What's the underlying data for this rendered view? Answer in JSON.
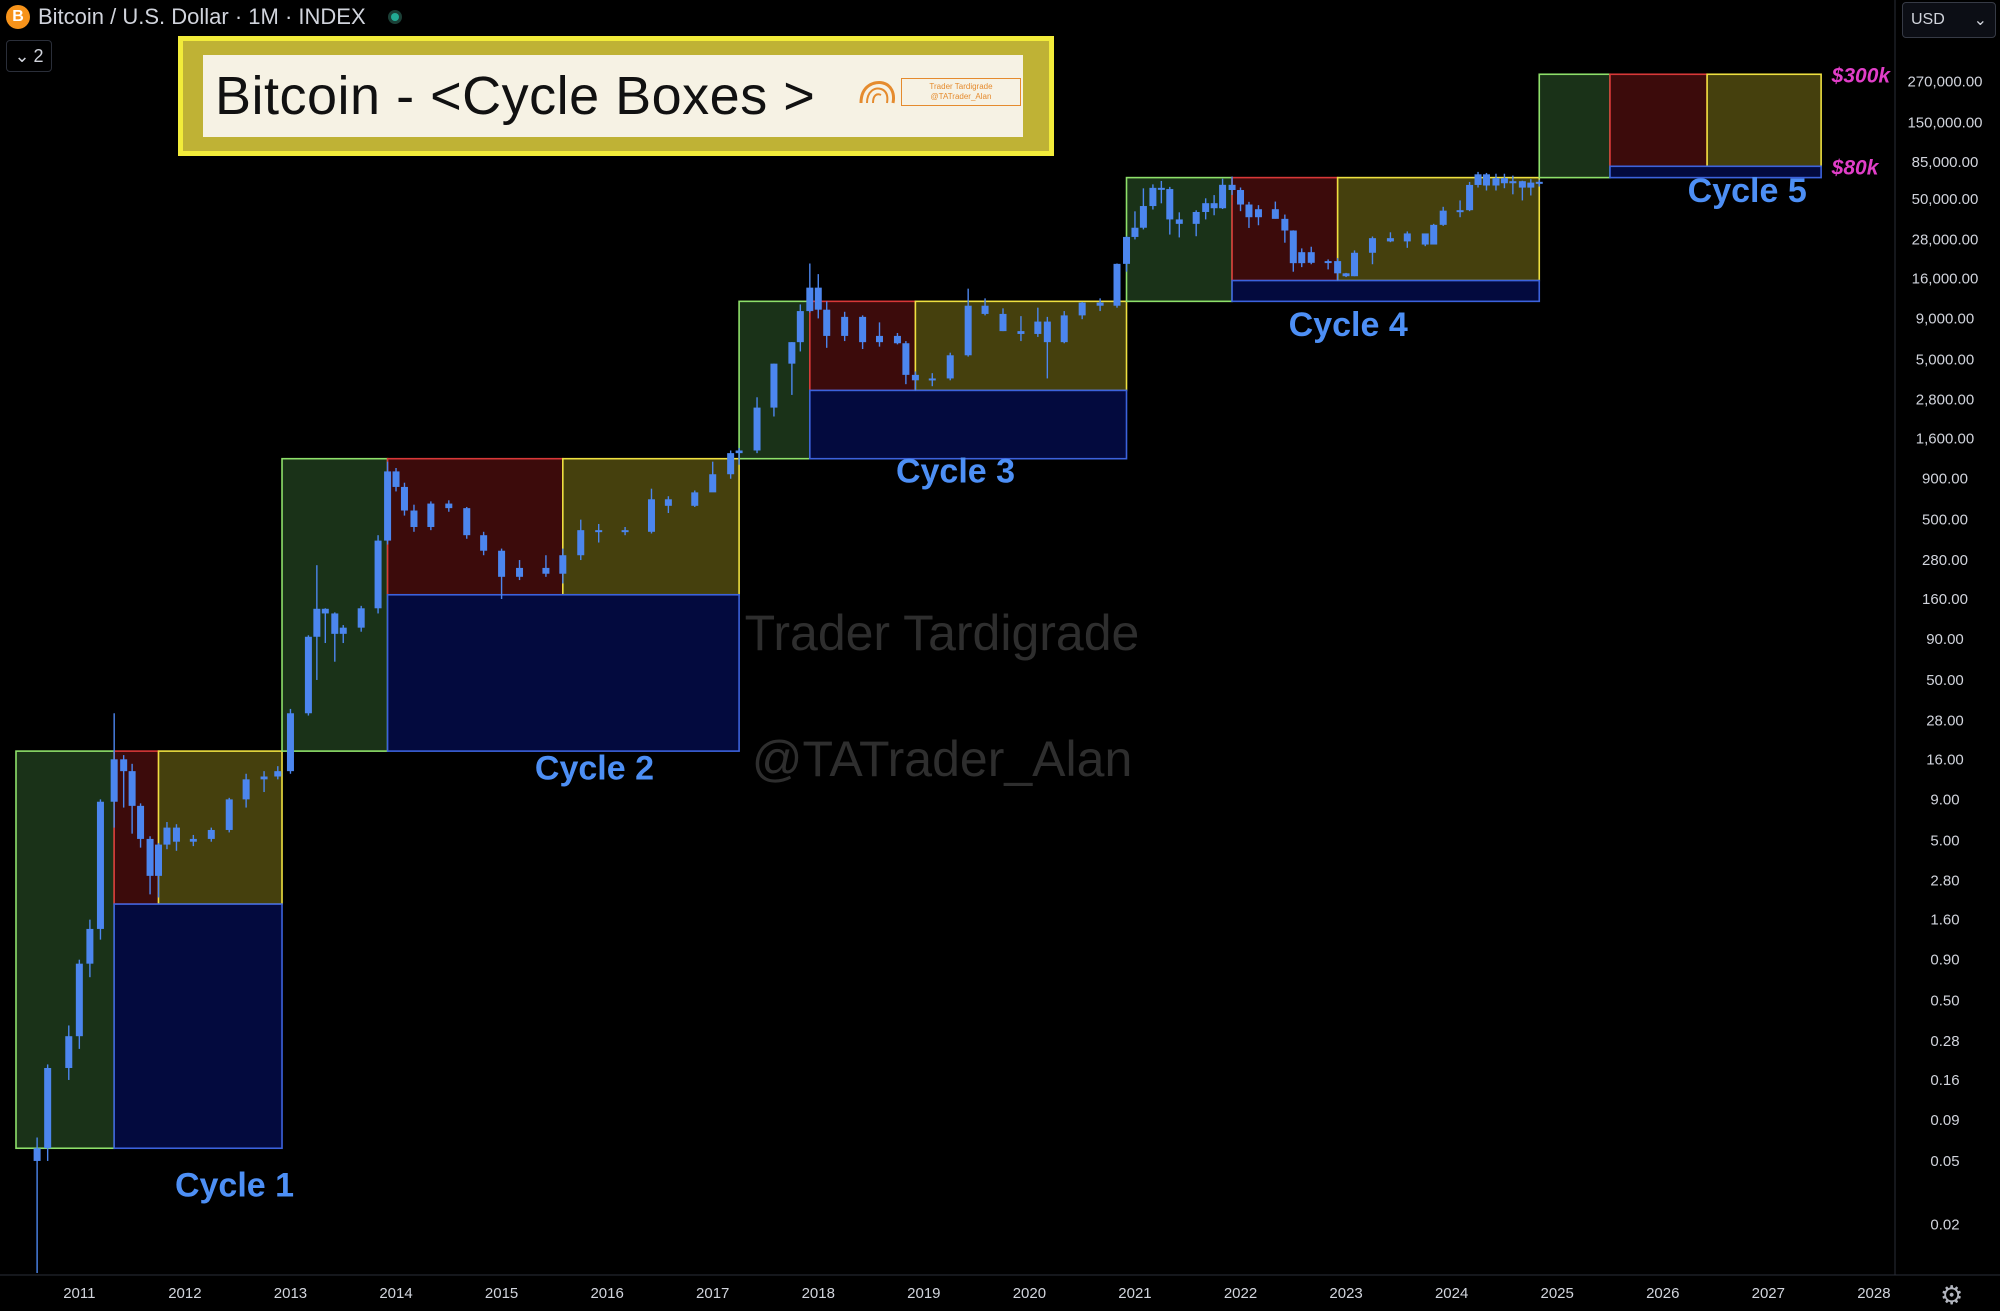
{
  "header": {
    "symbol_icon": "bitcoin-icon",
    "symbol_letter": "B",
    "title": "Bitcoin / U.S. Dollar · 1M · INDEX",
    "collapse_label": "2",
    "currency_label": "USD"
  },
  "title_box": {
    "text": "Bitcoin - <Cycle Boxes >",
    "logo_line1": "Trader Tardigrade",
    "logo_line2": "@TATrader_Alan"
  },
  "watermark": {
    "line1": "Trader Tardigrade",
    "line2": "@TATrader_Alan"
  },
  "colors": {
    "candle": "#4c86ee",
    "green_box": "#1a3218",
    "green_border": "#8ee06a",
    "red_box": "#3c0b0b",
    "red_border": "#d83838",
    "yellow_box": "#45400d",
    "yellow_border": "#eee040",
    "blue_box": "#030a3e",
    "blue_border": "#3c62dc",
    "cycle_label": "#4d8ff5",
    "target_label": "#e13ec8"
  },
  "chart_data": {
    "type": "candlestick",
    "title": "Bitcoin / U.S. Dollar · 1M · INDEX",
    "yscale": "log",
    "ylim": [
      0.01,
      600000
    ],
    "xlim": [
      2010.4,
      2028.2
    ],
    "y_ticks": [
      "270,000.00",
      "150,000.00",
      "85,000.00",
      "50,000.00",
      "28,000.00",
      "16,000.00",
      "9,000.00",
      "5,000.00",
      "2,800.00",
      "1,600.00",
      "900.00",
      "500.00",
      "280.00",
      "160.00",
      "90.00",
      "50.00",
      "28.00",
      "16.00",
      "9.00",
      "5.00",
      "2.80",
      "1.60",
      "0.90",
      "0.50",
      "0.28",
      "0.16",
      "0.09",
      "0.05",
      "0.02"
    ],
    "x_ticks": [
      "2011",
      "2012",
      "2013",
      "2014",
      "2015",
      "2016",
      "2017",
      "2018",
      "2019",
      "2020",
      "2021",
      "2022",
      "2023",
      "2024",
      "2025",
      "2026",
      "2027",
      "2028"
    ],
    "cycle_boxes": [
      {
        "cycle": "Cycle 1",
        "green": [
          2010.4,
          2011.33,
          0.06,
          18
        ],
        "red": [
          2011.33,
          2011.75,
          2.0,
          18
        ],
        "yellow": [
          2011.75,
          2012.92,
          2.0,
          18
        ],
        "blue": [
          2011.33,
          2012.92,
          0.06,
          2.0
        ]
      },
      {
        "cycle": "Cycle 2",
        "green": [
          2012.92,
          2013.92,
          18,
          1200
        ],
        "red": [
          2013.92,
          2015.58,
          170,
          1200
        ],
        "yellow": [
          2015.58,
          2017.25,
          170,
          1200
        ],
        "blue": [
          2013.92,
          2017.25,
          18,
          170
        ]
      },
      {
        "cycle": "Cycle 3",
        "green": [
          2017.25,
          2017.92,
          1200,
          11500
        ],
        "red": [
          2017.92,
          2018.92,
          3200,
          11500
        ],
        "yellow": [
          2018.92,
          2020.92,
          3200,
          11500
        ],
        "blue": [
          2017.92,
          2020.92,
          1200,
          3200
        ]
      },
      {
        "cycle": "Cycle 4",
        "green": [
          2020.92,
          2021.92,
          11500,
          68000
        ],
        "red": [
          2021.92,
          2022.92,
          15500,
          68000
        ],
        "yellow": [
          2022.92,
          2024.83,
          15500,
          68000
        ],
        "blue": [
          2021.92,
          2024.83,
          11500,
          15500
        ]
      },
      {
        "cycle": "Cycle 5",
        "green": [
          2024.83,
          2025.5,
          68000,
          300000
        ],
        "red": [
          2025.5,
          2026.42,
          80000,
          300000
        ],
        "yellow": [
          2026.42,
          2027.5,
          80000,
          300000
        ],
        "blue": [
          2025.5,
          2027.5,
          68000,
          80000
        ]
      }
    ],
    "annotations": {
      "cycle_labels": [
        {
          "text": "Cycle 1",
          "x": 2012.47,
          "y": 0.03
        },
        {
          "text": "Cycle 2",
          "x": 2015.88,
          "y": 12
        },
        {
          "text": "Cycle 3",
          "x": 2019.3,
          "y": 850
        },
        {
          "text": "Cycle 4",
          "x": 2023.02,
          "y": 7000
        },
        {
          "text": "Cycle 5",
          "x": 2026.8,
          "y": 48000
        }
      ],
      "target_labels": [
        {
          "text": "$300k",
          "x": 2027.6,
          "y": 300000
        },
        {
          "text": "$80k",
          "x": 2027.6,
          "y": 80000
        }
      ]
    },
    "series": [
      {
        "name": "BTCUSD",
        "points": [
          [
            2010.6,
            0.05,
            0.07,
            0.01,
            0.06
          ],
          [
            2010.7,
            0.06,
            0.2,
            0.05,
            0.19
          ],
          [
            2010.9,
            0.19,
            0.35,
            0.16,
            0.3
          ],
          [
            2011.0,
            0.3,
            0.9,
            0.25,
            0.85
          ],
          [
            2011.1,
            0.85,
            1.6,
            0.7,
            1.4
          ],
          [
            2011.2,
            1.4,
            9,
            1.2,
            8.7
          ],
          [
            2011.33,
            8.7,
            31,
            6,
            16
          ],
          [
            2011.42,
            16,
            17,
            8,
            13.5
          ],
          [
            2011.5,
            13.5,
            15,
            5.5,
            8.2
          ],
          [
            2011.58,
            8.2,
            8.5,
            4.5,
            5.1
          ],
          [
            2011.67,
            5.1,
            5.3,
            2.3,
            3.0
          ],
          [
            2011.75,
            3.0,
            4.8,
            2.2,
            4.7
          ],
          [
            2011.83,
            4.7,
            6.5,
            4.4,
            6.0
          ],
          [
            2011.92,
            6.0,
            6.3,
            4.3,
            4.9
          ],
          [
            2012.08,
            4.9,
            5.4,
            4.6,
            5.1
          ],
          [
            2012.25,
            5.1,
            6.0,
            4.9,
            5.8
          ],
          [
            2012.42,
            5.8,
            9.2,
            5.6,
            9.0
          ],
          [
            2012.58,
            9.0,
            13,
            8,
            12
          ],
          [
            2012.75,
            12,
            13.5,
            10,
            12.5
          ],
          [
            2012.88,
            12.5,
            14.5,
            12,
            13.5
          ],
          [
            2013.0,
            13.5,
            33,
            13,
            31
          ],
          [
            2013.17,
            31,
            95,
            30,
            93
          ],
          [
            2013.25,
            93,
            260,
            50,
            139
          ],
          [
            2013.33,
            139,
            140,
            85,
            130
          ],
          [
            2013.42,
            130,
            132,
            65,
            97
          ],
          [
            2013.5,
            97,
            110,
            85,
            106
          ],
          [
            2013.67,
            106,
            145,
            100,
            140
          ],
          [
            2013.83,
            140,
            400,
            130,
            370
          ],
          [
            2013.92,
            370,
            1150,
            350,
            1000
          ],
          [
            2014.0,
            1000,
            1050,
            750,
            800
          ],
          [
            2014.08,
            800,
            850,
            530,
            570
          ],
          [
            2014.17,
            570,
            620,
            420,
            450
          ],
          [
            2014.33,
            450,
            650,
            430,
            630
          ],
          [
            2014.5,
            630,
            660,
            560,
            590
          ],
          [
            2014.67,
            590,
            600,
            380,
            400
          ],
          [
            2014.83,
            400,
            420,
            300,
            320
          ],
          [
            2015.0,
            320,
            330,
            160,
            220
          ],
          [
            2015.17,
            220,
            280,
            210,
            250
          ],
          [
            2015.42,
            250,
            300,
            220,
            230
          ],
          [
            2015.58,
            230,
            330,
            200,
            300
          ],
          [
            2015.75,
            300,
            500,
            280,
            430
          ],
          [
            2015.92,
            430,
            470,
            360,
            430
          ],
          [
            2016.17,
            430,
            450,
            400,
            420
          ],
          [
            2016.42,
            420,
            780,
            410,
            670
          ],
          [
            2016.58,
            670,
            700,
            550,
            610
          ],
          [
            2016.83,
            610,
            760,
            600,
            740
          ],
          [
            2017.0,
            740,
            1150,
            750,
            960
          ],
          [
            2017.17,
            960,
            1350,
            900,
            1300
          ],
          [
            2017.25,
            1300,
            1400,
            1100,
            1350
          ],
          [
            2017.42,
            1350,
            2900,
            1300,
            2500
          ],
          [
            2017.58,
            2500,
            4700,
            2200,
            4700
          ],
          [
            2017.75,
            4700,
            6400,
            3000,
            6400
          ],
          [
            2017.83,
            6400,
            11000,
            5600,
            10000
          ],
          [
            2017.92,
            10000,
            19800,
            9800,
            14000
          ],
          [
            2018.0,
            14000,
            17000,
            9000,
            10200
          ],
          [
            2018.08,
            10200,
            11500,
            5900,
            7000
          ],
          [
            2018.25,
            7000,
            9900,
            6500,
            9200
          ],
          [
            2018.42,
            9200,
            9400,
            5800,
            6400
          ],
          [
            2018.58,
            6400,
            8500,
            6000,
            7000
          ],
          [
            2018.75,
            7000,
            7300,
            6200,
            6300
          ],
          [
            2018.83,
            6300,
            6500,
            3500,
            4000
          ],
          [
            2018.92,
            4000,
            4200,
            3200,
            3700
          ],
          [
            2019.08,
            3700,
            4100,
            3400,
            3800
          ],
          [
            2019.25,
            3800,
            5500,
            3700,
            5300
          ],
          [
            2019.42,
            5300,
            13800,
            5200,
            10800
          ],
          [
            2019.58,
            10800,
            12000,
            9400,
            9600
          ],
          [
            2019.75,
            9600,
            10400,
            7500,
            7500
          ],
          [
            2019.92,
            7500,
            9300,
            6500,
            7200
          ],
          [
            2020.08,
            7200,
            10500,
            6900,
            8600
          ],
          [
            2020.17,
            8600,
            9200,
            3800,
            6400
          ],
          [
            2020.33,
            6400,
            10000,
            6300,
            9400
          ],
          [
            2020.5,
            9400,
            11400,
            8900,
            11300
          ],
          [
            2020.67,
            11300,
            12000,
            10000,
            10800
          ],
          [
            2020.83,
            10800,
            19800,
            10500,
            19700
          ],
          [
            2020.92,
            19700,
            29300,
            17600,
            29000
          ],
          [
            2021.0,
            29000,
            41900,
            28000,
            33100
          ],
          [
            2021.08,
            33100,
            58300,
            32300,
            45200
          ],
          [
            2021.17,
            45200,
            61700,
            43000,
            58700
          ],
          [
            2021.25,
            58700,
            64800,
            47000,
            57700
          ],
          [
            2021.33,
            57700,
            59500,
            30000,
            37300
          ],
          [
            2021.42,
            37300,
            41300,
            28800,
            35000
          ],
          [
            2021.58,
            35000,
            42500,
            29300,
            41500
          ],
          [
            2021.67,
            41500,
            50500,
            37300,
            47100
          ],
          [
            2021.75,
            47100,
            52900,
            39600,
            43800
          ],
          [
            2021.83,
            43800,
            66900,
            43300,
            61300
          ],
          [
            2021.92,
            61300,
            69000,
            53000,
            56900
          ],
          [
            2022.0,
            56900,
            59000,
            42000,
            46200
          ],
          [
            2022.08,
            46200,
            48000,
            33000,
            38500
          ],
          [
            2022.17,
            38500,
            45800,
            34300,
            43200
          ],
          [
            2022.33,
            43200,
            48200,
            37700,
            37600
          ],
          [
            2022.42,
            37600,
            40000,
            26700,
            31800
          ],
          [
            2022.5,
            31800,
            31900,
            17600,
            19900
          ],
          [
            2022.58,
            19900,
            24600,
            18800,
            23300
          ],
          [
            2022.67,
            23300,
            25200,
            19600,
            20000
          ],
          [
            2022.83,
            20000,
            21000,
            18200,
            20500
          ],
          [
            2022.92,
            20500,
            21400,
            15500,
            17200
          ],
          [
            2023.0,
            17200,
            17300,
            16300,
            16500
          ],
          [
            2023.08,
            16500,
            23900,
            16500,
            23100
          ],
          [
            2023.25,
            23100,
            29200,
            19600,
            28500
          ],
          [
            2023.42,
            28500,
            31000,
            26900,
            27200
          ],
          [
            2023.58,
            27200,
            31400,
            24800,
            30500
          ],
          [
            2023.75,
            30500,
            30100,
            25400,
            26000
          ],
          [
            2023.83,
            26000,
            35000,
            26500,
            34500
          ],
          [
            2023.92,
            34500,
            44700,
            34000,
            42300
          ],
          [
            2024.08,
            42300,
            49000,
            38500,
            42600
          ],
          [
            2024.17,
            42600,
            63900,
            42000,
            61200
          ],
          [
            2024.25,
            61200,
            73800,
            59000,
            71300
          ],
          [
            2024.33,
            71300,
            72700,
            56500,
            60700
          ],
          [
            2024.42,
            60700,
            71900,
            56500,
            67500
          ],
          [
            2024.5,
            67500,
            71900,
            58400,
            62700
          ],
          [
            2024.58,
            62700,
            70000,
            53500,
            64600
          ],
          [
            2024.67,
            64600,
            65000,
            49000,
            58900
          ],
          [
            2024.75,
            58900,
            66500,
            52600,
            63300
          ],
          [
            2024.83,
            63300,
            66000,
            59800,
            64000
          ]
        ]
      }
    ]
  }
}
